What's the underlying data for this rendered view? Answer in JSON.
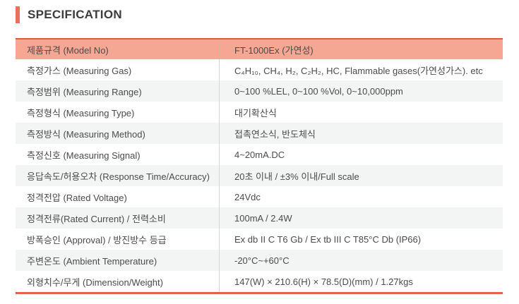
{
  "page": {
    "title": "SPECIFICATION"
  },
  "colors": {
    "accent_bar": "#e9705a",
    "highlight_row_bg": "#f5a793",
    "highlight_row_top_border": "#e25a3c",
    "alt_row_bg": "#f3f4f4",
    "divider": "#d6d6d6",
    "bottom_border": "#e8604c",
    "text": "#4b4b4b"
  },
  "table": {
    "rows": [
      {
        "label": "제품규격 (Model No)",
        "value": "FT-1000Ex (가연성)"
      },
      {
        "label": "측정가스 (Measuring Gas)",
        "value": "C₄H₁₀, CH₄, H₂, C₂H₂, HC, Flammable gases(가연성가스). etc"
      },
      {
        "label": "측정범위 (Measuring Range)",
        "value": "0~100 %LEL, 0~100 %Vol,  0~10,000ppm"
      },
      {
        "label": "측정형식 (Measuring Type)",
        "value": "대기확산식"
      },
      {
        "label": "측정방식 (Measuring Method)",
        "value": "접촉연소식, 반도체식"
      },
      {
        "label": "측정신호 (Measuring Signal)",
        "value": "4~20mA.DC"
      },
      {
        "label": "응답속도/허용오차 (Response Time/Accuracy)",
        "value": "20초 이내 / ±3% 이내/Full scale"
      },
      {
        "label": "정격전압 (Rated Voltage)",
        "value": "24Vdc"
      },
      {
        "label": "정격전류(Rated Current) / 전력소비",
        "value": "100mA / 2.4W"
      },
      {
        "label": "방폭승인 (Approval) / 방진방수 등급",
        "value": "Ex db II C T6 Gb / Ex tb III C T85°C Db (IP66)"
      },
      {
        "label": "주변온도 (Ambient Temperature)",
        "value": "-20°C~+60°C"
      },
      {
        "label": "외형치수/무게 (Dimension/Weight)",
        "value": "147(W) × 210.6(H) ×  78.5(D)(mm) / 1.27kgs"
      }
    ]
  }
}
